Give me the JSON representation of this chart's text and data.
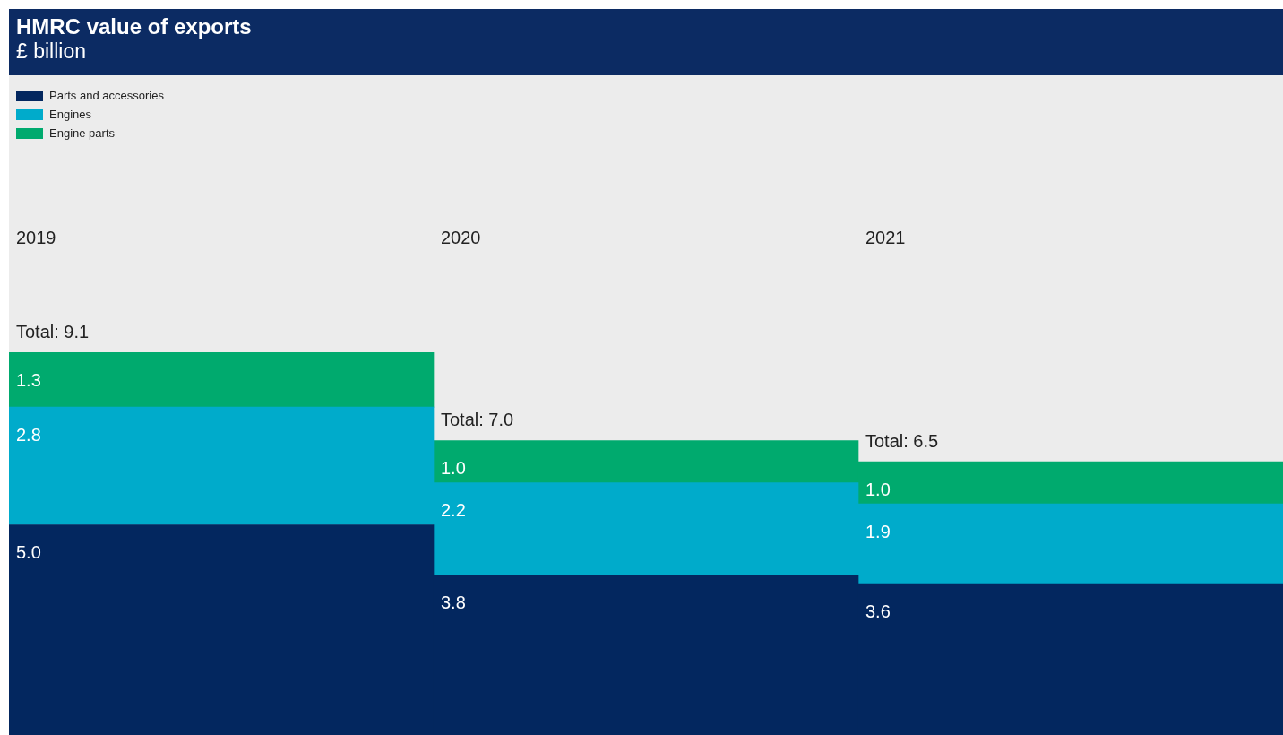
{
  "chart_data": {
    "type": "bar",
    "title": "HMRC value of exports",
    "subtitle": "£ billion",
    "categories": [
      "2019",
      "2020",
      "2021"
    ],
    "series": [
      {
        "name": "Parts and accessories",
        "color": "#03275f",
        "values": [
          5.0,
          3.8,
          3.6
        ],
        "value_labels": [
          "5.0",
          "3.8",
          "3.6"
        ]
      },
      {
        "name": "Engines",
        "color": "#00abcb",
        "values": [
          2.8,
          2.2,
          1.9
        ],
        "value_labels": [
          "2.8",
          "2.2",
          "1.9"
        ]
      },
      {
        "name": "Engine parts",
        "color": "#00aa6e",
        "values": [
          1.3,
          1.0,
          1.0
        ],
        "value_labels": [
          "1.3",
          "1.0",
          "1.0"
        ]
      }
    ],
    "stacked": true,
    "totals": [
      "Total: 9.1",
      "Total: 7.0",
      "Total: 6.5"
    ],
    "legend": "top left",
    "tick_labels": "x"
  }
}
